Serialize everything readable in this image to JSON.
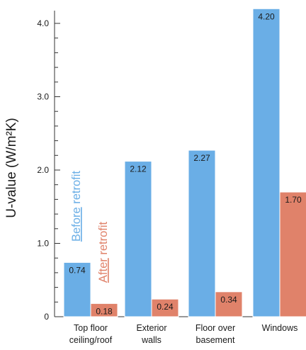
{
  "chart_data": {
    "type": "bar",
    "title": "",
    "xlabel": "",
    "ylabel": "U-value (W/m²K)",
    "ylim": [
      0,
      4.2
    ],
    "yticks": [
      "0",
      "1.0",
      "2.0",
      "3.0",
      "4.0"
    ],
    "categories": [
      [
        "Top floor",
        "ceiling/roof"
      ],
      [
        "Exterior",
        "walls"
      ],
      [
        "Floor over",
        "basement"
      ],
      [
        "Windows"
      ]
    ],
    "series": [
      {
        "name": "Before retrofit",
        "color": "#6aaee6",
        "values": [
          0.74,
          2.12,
          2.27,
          4.2
        ],
        "labels": [
          "0.74",
          "2.12",
          "2.27",
          "4.20"
        ]
      },
      {
        "name": "After retrofit",
        "color": "#e0826a",
        "values": [
          0.18,
          0.24,
          0.34,
          1.7
        ],
        "labels": [
          "0.18",
          "0.24",
          "0.34",
          "1.70"
        ]
      }
    ],
    "legend": {
      "placement": "inside-first-group",
      "underline_before": "Before",
      "rest_before": " retrofit",
      "underline_after": "After",
      "rest_after": " retrofit"
    },
    "grid": false,
    "axis_color": "#333333",
    "bar_edge_color": "#ffffff"
  }
}
